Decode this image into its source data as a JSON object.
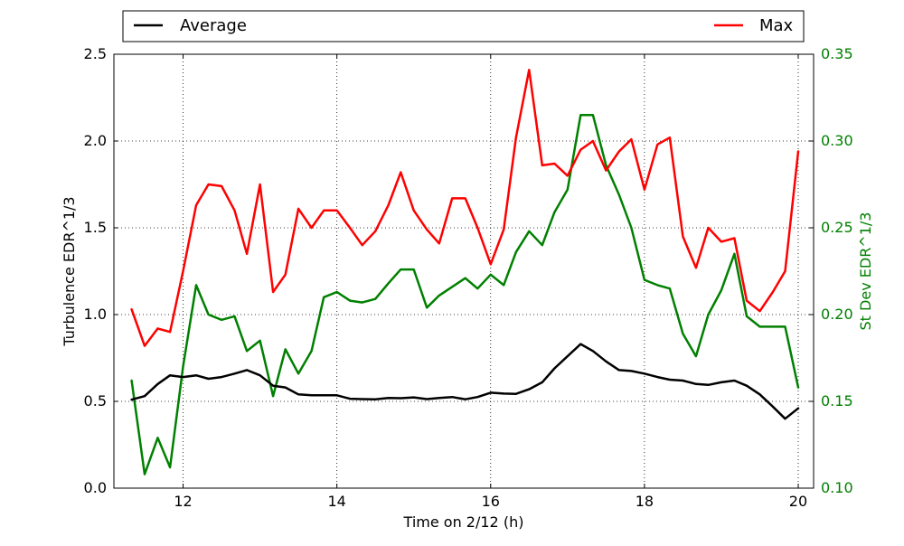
{
  "chart_data": {
    "type": "line",
    "xlabel": "Time on 2/12 (h)",
    "ylabel": "Turbulence EDR^1/3",
    "ylabel_right": "St Dev EDR^1/3",
    "xlim": [
      11.1,
      20.2
    ],
    "ylim": [
      0,
      2.5
    ],
    "ylim_right": [
      0.1,
      0.35
    ],
    "x_ticks": [
      "12",
      "14",
      "16",
      "18",
      "20"
    ],
    "y_ticks": [
      "0.0",
      "0.5",
      "1.0",
      "1.5",
      "2.0",
      "2.5"
    ],
    "y_ticks_right": [
      "0.10",
      "0.15",
      "0.20",
      "0.25",
      "0.30",
      "0.35"
    ],
    "grid": true,
    "legend_placement": "top, above plot",
    "x": [
      11.33,
      11.5,
      11.67,
      11.83,
      12.0,
      12.17,
      12.33,
      12.5,
      12.67,
      12.83,
      13.0,
      13.17,
      13.33,
      13.5,
      13.67,
      13.83,
      14.0,
      14.17,
      14.33,
      14.5,
      14.67,
      14.83,
      15.0,
      15.17,
      15.33,
      15.5,
      15.67,
      15.83,
      16.0,
      16.17,
      16.33,
      16.5,
      16.67,
      16.83,
      17.0,
      17.17,
      17.33,
      17.5,
      17.67,
      17.83,
      18.0,
      18.17,
      18.33,
      18.5,
      18.67,
      18.83,
      19.0,
      19.17,
      19.33,
      19.5,
      19.67,
      19.83,
      20.0
    ],
    "series": [
      {
        "name": "Average",
        "color": "#000000",
        "axis": "left",
        "values": [
          0.51,
          0.53,
          0.6,
          0.65,
          0.64,
          0.65,
          0.63,
          0.64,
          0.66,
          0.68,
          0.65,
          0.59,
          0.58,
          0.54,
          0.535,
          0.535,
          0.535,
          0.515,
          0.513,
          0.512,
          0.52,
          0.518,
          0.523,
          0.513,
          0.52,
          0.525,
          0.512,
          0.525,
          0.55,
          0.545,
          0.543,
          0.57,
          0.61,
          0.69,
          0.76,
          0.83,
          0.79,
          0.73,
          0.68,
          0.675,
          0.66,
          0.64,
          0.625,
          0.62,
          0.6,
          0.595,
          0.61,
          0.62,
          0.59,
          0.54,
          0.47,
          0.4,
          0.46
        ]
      },
      {
        "name": "Max",
        "color": "#ff0000",
        "axis": "left",
        "values": [
          1.03,
          0.82,
          0.92,
          0.9,
          1.25,
          1.63,
          1.75,
          1.74,
          1.6,
          1.35,
          1.75,
          1.13,
          1.23,
          1.61,
          1.5,
          1.6,
          1.6,
          1.5,
          1.4,
          1.48,
          1.63,
          1.82,
          1.6,
          1.49,
          1.41,
          1.67,
          1.67,
          1.5,
          1.29,
          1.49,
          2.02,
          2.41,
          1.86,
          1.87,
          1.8,
          1.95,
          2.0,
          1.83,
          1.94,
          2.01,
          1.72,
          1.98,
          2.02,
          1.45,
          1.27,
          1.5,
          1.42,
          1.44,
          1.08,
          1.02,
          1.13,
          1.25,
          1.94
        ]
      },
      {
        "name": "St Dev",
        "color": "#008000",
        "axis": "right",
        "values": [
          0.162,
          0.108,
          0.129,
          0.112,
          0.17,
          0.217,
          0.2,
          0.197,
          0.199,
          0.179,
          0.185,
          0.153,
          0.18,
          0.166,
          0.179,
          0.21,
          0.213,
          0.208,
          0.207,
          0.209,
          0.218,
          0.226,
          0.226,
          0.204,
          0.211,
          0.216,
          0.221,
          0.215,
          0.223,
          0.217,
          0.236,
          0.248,
          0.24,
          0.259,
          0.272,
          0.315,
          0.315,
          0.286,
          0.269,
          0.25,
          0.22,
          0.217,
          0.215,
          0.189,
          0.176,
          0.2,
          0.214,
          0.235,
          0.199,
          0.193,
          0.193,
          0.193,
          0.158
        ]
      }
    ],
    "legend": [
      {
        "name": "Average",
        "color": "#000000"
      },
      {
        "name": "Max",
        "color": "#ff0000"
      }
    ],
    "axis_colors": {
      "left": "#000000",
      "right": "#008000"
    }
  }
}
